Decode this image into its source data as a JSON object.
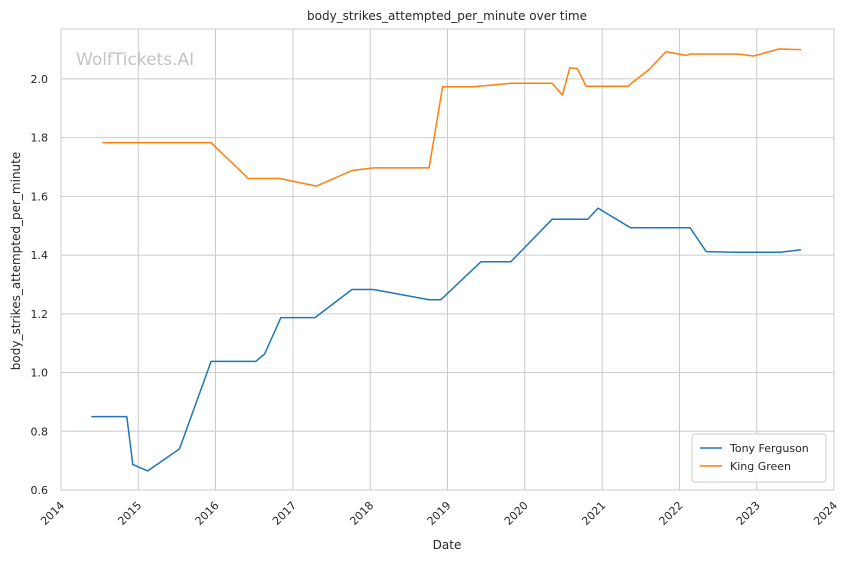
{
  "chart_data": {
    "type": "line",
    "title": "body_strikes_attempted_per_minute over time",
    "xlabel": "Date",
    "ylabel": "body_strikes_attempted_per_minute",
    "watermark": "WolfTickets.AI",
    "xlim": [
      "2014-01-01",
      "2024-01-01"
    ],
    "ylim": [
      0.6,
      2.17
    ],
    "x_ticks": [
      "2014",
      "2015",
      "2016",
      "2017",
      "2018",
      "2019",
      "2020",
      "2021",
      "2022",
      "2023",
      "2024"
    ],
    "y_ticks": [
      0.6,
      0.8,
      1.0,
      1.2,
      1.4,
      1.6,
      1.8,
      2.0
    ],
    "y_tick_labels": [
      "0.6",
      "0.8",
      "1.0",
      "1.2",
      "1.4",
      "1.6",
      "1.8",
      "2.0"
    ],
    "grid": true,
    "legend_position": "bottom-right",
    "series": [
      {
        "name": "Tony Ferguson",
        "color": "#1f77b4",
        "points": [
          [
            "2014-05-24",
            0.85
          ],
          [
            "2014-11-08",
            0.85
          ],
          [
            "2014-12-06",
            0.687
          ],
          [
            "2015-02-15",
            0.665
          ],
          [
            "2015-07-15",
            0.74
          ],
          [
            "2015-12-11",
            1.038
          ],
          [
            "2016-07-09",
            1.038
          ],
          [
            "2016-08-20",
            1.063
          ],
          [
            "2016-11-05",
            1.187
          ],
          [
            "2017-04-15",
            1.187
          ],
          [
            "2017-10-07",
            1.283
          ],
          [
            "2018-01-15",
            1.283
          ],
          [
            "2018-10-06",
            1.248
          ],
          [
            "2018-12-01",
            1.248
          ],
          [
            "2019-06-08",
            1.377
          ],
          [
            "2019-10-27",
            1.377
          ],
          [
            "2020-05-09",
            1.522
          ],
          [
            "2020-10-25",
            1.522
          ],
          [
            "2020-12-12",
            1.56
          ],
          [
            "2021-05-15",
            1.493
          ],
          [
            "2022-02-20",
            1.493
          ],
          [
            "2022-05-07",
            1.412
          ],
          [
            "2022-09-10",
            1.41
          ],
          [
            "2023-04-22",
            1.41
          ],
          [
            "2023-07-29",
            1.418
          ]
        ]
      },
      {
        "name": "King Green",
        "color": "#ff7f0e",
        "points": [
          [
            "2014-07-16",
            1.783
          ],
          [
            "2015-12-10",
            1.783
          ],
          [
            "2016-06-04",
            1.661
          ],
          [
            "2016-10-30",
            1.661
          ],
          [
            "2017-04-22",
            1.635
          ],
          [
            "2017-10-07",
            1.688
          ],
          [
            "2018-01-15",
            1.697
          ],
          [
            "2018-10-06",
            1.697
          ],
          [
            "2018-12-09",
            1.973
          ],
          [
            "2019-05-01",
            1.973
          ],
          [
            "2019-10-27",
            1.985
          ],
          [
            "2020-05-09",
            1.985
          ],
          [
            "2020-06-27",
            1.945
          ],
          [
            "2020-08-01",
            2.038
          ],
          [
            "2020-09-05",
            2.035
          ],
          [
            "2020-10-17",
            1.975
          ],
          [
            "2021-05-01",
            1.975
          ],
          [
            "2021-08-07",
            2.03
          ],
          [
            "2021-10-30",
            2.093
          ],
          [
            "2022-02-01",
            2.08
          ],
          [
            "2022-02-20",
            2.085
          ],
          [
            "2022-10-01",
            2.085
          ],
          [
            "2022-12-17",
            2.078
          ],
          [
            "2023-04-15",
            2.102
          ],
          [
            "2023-07-29",
            2.1
          ]
        ]
      }
    ]
  }
}
